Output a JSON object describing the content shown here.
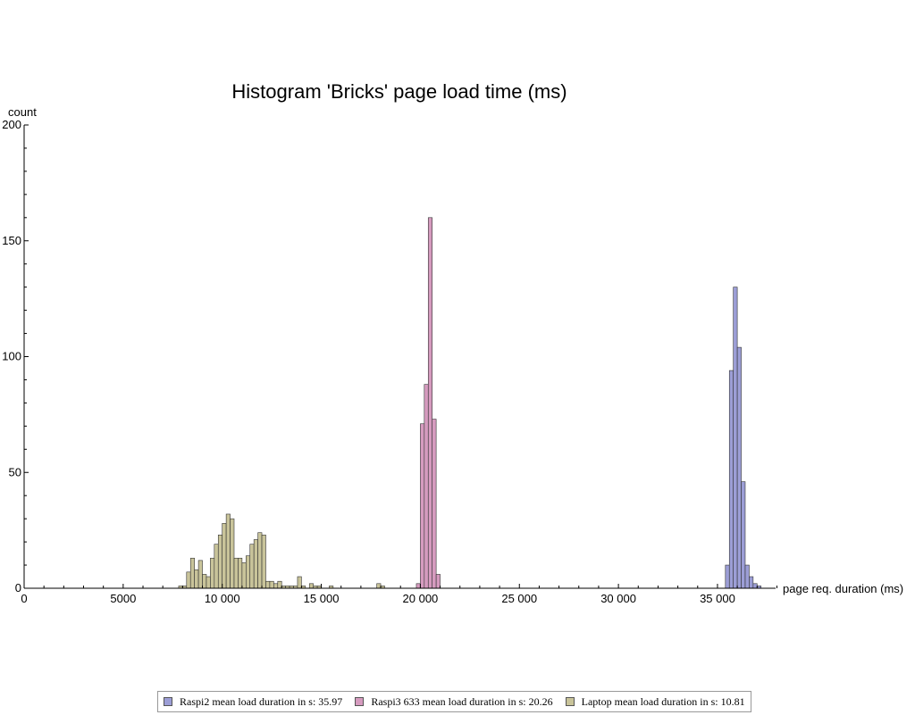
{
  "colors": {
    "raspi2": "#9c9ed6",
    "raspi3": "#d69bbf",
    "laptop": "#c9c49a",
    "bar_stroke": "#333333"
  },
  "chart_data": {
    "type": "bar",
    "title": "Histogram 'Bricks' page load time (ms)",
    "xlabel": "page req. duration (ms)",
    "ylabel": "count",
    "xlim": [
      0,
      38000
    ],
    "ylim": [
      0,
      200
    ],
    "bin_width": 200,
    "x_ticks": [
      0,
      5000,
      10000,
      15000,
      20000,
      25000,
      30000,
      35000
    ],
    "x_tick_labels": [
      "0",
      "5000",
      "10 000",
      "15 000",
      "20 000",
      "25 000",
      "30 000",
      "35 000"
    ],
    "y_ticks": [
      0,
      50,
      100,
      150,
      200
    ],
    "y_tick_labels": [
      "0",
      "50",
      "100",
      "150",
      "200"
    ],
    "legend_position": "bottom",
    "series": [
      {
        "key": "laptop",
        "name": "Laptop mean load duration in s: 10.81",
        "bins": [
          [
            7800,
            1
          ],
          [
            8000,
            1
          ],
          [
            8200,
            7
          ],
          [
            8400,
            13
          ],
          [
            8600,
            8
          ],
          [
            8800,
            12
          ],
          [
            9000,
            6
          ],
          [
            9200,
            5
          ],
          [
            9400,
            13
          ],
          [
            9600,
            19
          ],
          [
            9800,
            23
          ],
          [
            10000,
            28
          ],
          [
            10200,
            32
          ],
          [
            10400,
            30
          ],
          [
            10600,
            13
          ],
          [
            10800,
            13
          ],
          [
            11000,
            11
          ],
          [
            11200,
            14
          ],
          [
            11400,
            19
          ],
          [
            11600,
            21
          ],
          [
            11800,
            24
          ],
          [
            12000,
            23
          ],
          [
            12200,
            3
          ],
          [
            12400,
            3
          ],
          [
            12600,
            2
          ],
          [
            12800,
            3
          ],
          [
            13000,
            1
          ],
          [
            13200,
            1
          ],
          [
            13400,
            1
          ],
          [
            13600,
            1
          ],
          [
            13800,
            5
          ],
          [
            14000,
            1
          ],
          [
            14400,
            2
          ],
          [
            14600,
            1
          ],
          [
            14800,
            1
          ],
          [
            15400,
            1
          ],
          [
            17800,
            2
          ],
          [
            18000,
            1
          ]
        ]
      },
      {
        "key": "raspi3",
        "name": "Raspi3 633 mean load duration in s: 20.26",
        "bins": [
          [
            19800,
            2
          ],
          [
            20000,
            71
          ],
          [
            20200,
            88
          ],
          [
            20400,
            160
          ],
          [
            20600,
            73
          ],
          [
            20800,
            6
          ]
        ]
      },
      {
        "key": "raspi2",
        "name": "Raspi2 mean load duration in s: 35.97",
        "bins": [
          [
            35400,
            10
          ],
          [
            35600,
            94
          ],
          [
            35800,
            130
          ],
          [
            36000,
            104
          ],
          [
            36200,
            46
          ],
          [
            36400,
            10
          ],
          [
            36600,
            5
          ],
          [
            36800,
            2
          ],
          [
            37000,
            1
          ]
        ]
      }
    ]
  },
  "legend": {
    "items": [
      {
        "key": "raspi2",
        "label": "Raspi2 mean load duration in s: 35.97"
      },
      {
        "key": "raspi3",
        "label": "Raspi3 633 mean load duration in s: 20.26"
      },
      {
        "key": "laptop",
        "label": "Laptop mean load duration in s: 10.81"
      }
    ]
  }
}
